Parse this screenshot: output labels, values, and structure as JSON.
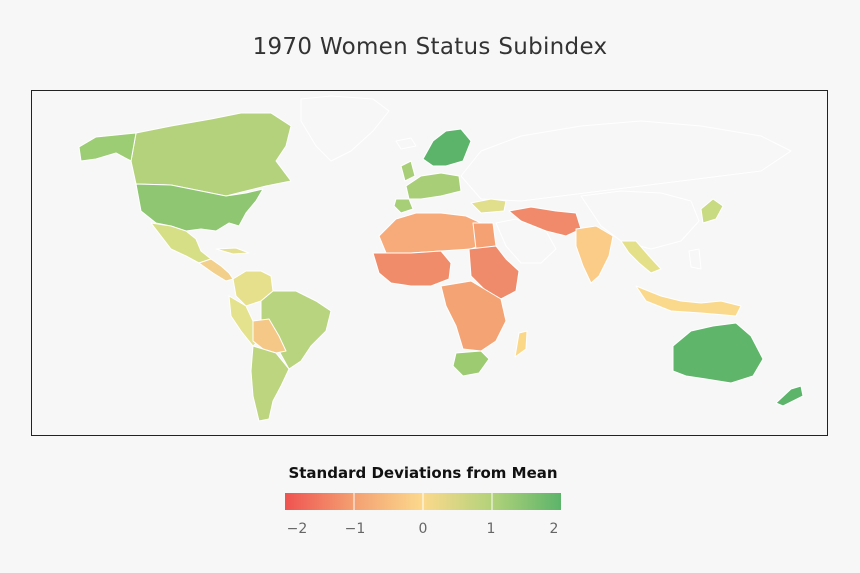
{
  "title": "1970 Women Status Subindex",
  "legend": {
    "title": "Standard Deviations from Mean",
    "ticks": [
      "−2",
      "−1",
      "0",
      "1",
      "2"
    ],
    "stops": [
      -2,
      -1,
      0,
      1,
      2
    ],
    "colors": [
      "#ef5350",
      "#f4a072",
      "#fcd98c",
      "#b2d27a",
      "#5cb46a"
    ]
  },
  "map": {
    "background": "#f7f7f7",
    "borders": "#ffffff",
    "no_data_color": "#f7f7f7"
  }
}
